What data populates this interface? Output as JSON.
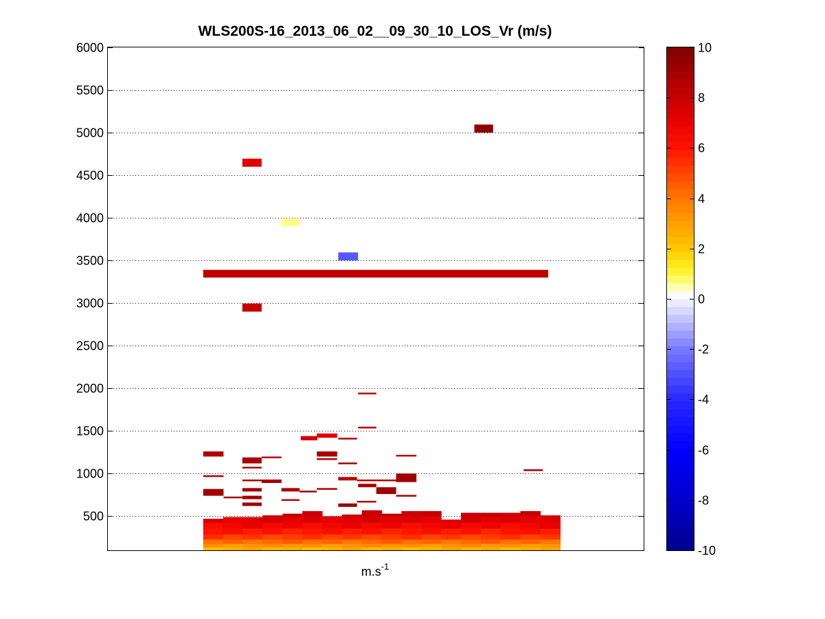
{
  "chart_data": {
    "type": "heatmap",
    "title": "WLS200S-16_2013_06_02__09_30_10_LOS_Vr (m/s)",
    "xlabel_base": "m.s",
    "xlabel_exponent": "-1",
    "ylim": [
      100,
      6000
    ],
    "yticks": [
      "500",
      "1000",
      "1500",
      "2000",
      "2500",
      "3000",
      "3500",
      "4000",
      "4500",
      "5000",
      "5500",
      "6000"
    ],
    "grid": "horizontal-dotted",
    "xlim": [
      0,
      1
    ],
    "colorbar": {
      "clim": [
        -10,
        10
      ],
      "ticks": [
        "-10",
        "-8",
        "-6",
        "-4",
        "-2",
        "0",
        "2",
        "4",
        "6",
        "8",
        "10"
      ],
      "colormap": "blue-white-yellow-red",
      "levels": 64
    },
    "column_x": [
      0.178,
      0.215,
      0.252,
      0.289,
      0.326,
      0.363,
      0.4,
      0.437,
      0.474,
      0.511,
      0.548,
      0.585,
      0.622,
      0.659,
      0.696,
      0.733,
      0.77,
      0.807
    ],
    "base_top": [
      470,
      490,
      490,
      510,
      530,
      560,
      500,
      520,
      570,
      530,
      560,
      560,
      460,
      540,
      540,
      540,
      560,
      510
    ],
    "base_profile": [
      {
        "z": 100,
        "v": 2.6
      },
      {
        "z": 140,
        "v": 3.3
      },
      {
        "z": 180,
        "v": 4.3
      },
      {
        "z": 230,
        "v": 5.2
      },
      {
        "z": 290,
        "v": 6.0
      },
      {
        "z": 360,
        "v": 6.7
      },
      {
        "z": 430,
        "v": 7.4
      },
      {
        "z": 500,
        "v": 8.0
      },
      {
        "z": 560,
        "v": 8.6
      }
    ],
    "segments": [
      {
        "x0": 0.178,
        "x1": 0.822,
        "z0": 3300,
        "z1": 3390,
        "v": 8.3
      },
      {
        "x0": 0.684,
        "x1": 0.719,
        "z0": 5000,
        "z1": 5095,
        "v": 9.6
      },
      {
        "x0": 0.251,
        "x1": 0.287,
        "z0": 4600,
        "z1": 4695,
        "v": 7.3
      },
      {
        "x0": 0.324,
        "x1": 0.358,
        "z0": 3900,
        "z1": 3995,
        "v": 0.6
      },
      {
        "x0": 0.43,
        "x1": 0.467,
        "z0": 3500,
        "z1": 3595,
        "v": -2.8
      },
      {
        "x0": 0.251,
        "x1": 0.287,
        "z0": 2900,
        "z1": 2995,
        "v": 8.1
      },
      {
        "x0": 0.467,
        "x1": 0.501,
        "z0": 1930,
        "z1": 1950,
        "v": 8.4
      },
      {
        "x0": 0.467,
        "x1": 0.501,
        "z0": 1530,
        "z1": 1550,
        "v": 8.4
      },
      {
        "x0": 0.36,
        "x1": 0.391,
        "z0": 1390,
        "z1": 1440,
        "v": 7.6
      },
      {
        "x0": 0.39,
        "x1": 0.428,
        "z0": 1420,
        "z1": 1470,
        "v": 7.2
      },
      {
        "x0": 0.43,
        "x1": 0.465,
        "z0": 1400,
        "z1": 1420,
        "v": 8.4
      },
      {
        "x0": 0.178,
        "x1": 0.216,
        "z0": 1200,
        "z1": 1260,
        "v": 8.7
      },
      {
        "x0": 0.251,
        "x1": 0.287,
        "z0": 1120,
        "z1": 1190,
        "v": 8.9
      },
      {
        "x0": 0.287,
        "x1": 0.324,
        "z0": 1180,
        "z1": 1200,
        "v": 8.3
      },
      {
        "x0": 0.39,
        "x1": 0.428,
        "z0": 1200,
        "z1": 1260,
        "v": 8.9
      },
      {
        "x0": 0.39,
        "x1": 0.428,
        "z0": 1160,
        "z1": 1180,
        "v": 8.6
      },
      {
        "x0": 0.43,
        "x1": 0.465,
        "z0": 1110,
        "z1": 1130,
        "v": 9.0
      },
      {
        "x0": 0.538,
        "x1": 0.576,
        "z0": 1200,
        "z1": 1220,
        "v": 8.4
      },
      {
        "x0": 0.251,
        "x1": 0.287,
        "z0": 1060,
        "z1": 1080,
        "v": 8.6
      },
      {
        "x0": 0.178,
        "x1": 0.216,
        "z0": 960,
        "z1": 980,
        "v": 8.9
      },
      {
        "x0": 0.251,
        "x1": 0.287,
        "z0": 910,
        "z1": 930,
        "v": 8.9
      },
      {
        "x0": 0.287,
        "x1": 0.324,
        "z0": 890,
        "z1": 930,
        "v": 9.0
      },
      {
        "x0": 0.43,
        "x1": 0.465,
        "z0": 920,
        "z1": 960,
        "v": 8.4
      },
      {
        "x0": 0.465,
        "x1": 0.501,
        "z0": 910,
        "z1": 930,
        "v": 8.6
      },
      {
        "x0": 0.501,
        "x1": 0.538,
        "z0": 910,
        "z1": 930,
        "v": 8.4
      },
      {
        "x0": 0.538,
        "x1": 0.576,
        "z0": 900,
        "z1": 1000,
        "v": 9.1
      },
      {
        "x0": 0.776,
        "x1": 0.812,
        "z0": 1030,
        "z1": 1050,
        "v": 9.1
      },
      {
        "x0": 0.467,
        "x1": 0.501,
        "z0": 840,
        "z1": 880,
        "v": 8.9
      },
      {
        "x0": 0.178,
        "x1": 0.216,
        "z0": 740,
        "z1": 820,
        "v": 9.1
      },
      {
        "x0": 0.216,
        "x1": 0.251,
        "z0": 710,
        "z1": 730,
        "v": 8.9
      },
      {
        "x0": 0.251,
        "x1": 0.287,
        "z0": 790,
        "z1": 830,
        "v": 9.1
      },
      {
        "x0": 0.251,
        "x1": 0.287,
        "z0": 700,
        "z1": 740,
        "v": 8.9
      },
      {
        "x0": 0.251,
        "x1": 0.287,
        "z0": 620,
        "z1": 660,
        "v": 9.3
      },
      {
        "x0": 0.324,
        "x1": 0.358,
        "z0": 790,
        "z1": 830,
        "v": 8.9
      },
      {
        "x0": 0.324,
        "x1": 0.358,
        "z0": 680,
        "z1": 700,
        "v": 8.4
      },
      {
        "x0": 0.358,
        "x1": 0.39,
        "z0": 780,
        "z1": 800,
        "v": 9.3
      },
      {
        "x0": 0.39,
        "x1": 0.428,
        "z0": 810,
        "z1": 830,
        "v": 9.0
      },
      {
        "x0": 0.43,
        "x1": 0.465,
        "z0": 610,
        "z1": 650,
        "v": 9.3
      },
      {
        "x0": 0.465,
        "x1": 0.501,
        "z0": 660,
        "z1": 680,
        "v": 8.6
      },
      {
        "x0": 0.501,
        "x1": 0.538,
        "z0": 760,
        "z1": 840,
        "v": 9.1
      },
      {
        "x0": 0.538,
        "x1": 0.576,
        "z0": 730,
        "z1": 750,
        "v": 8.9
      }
    ]
  }
}
